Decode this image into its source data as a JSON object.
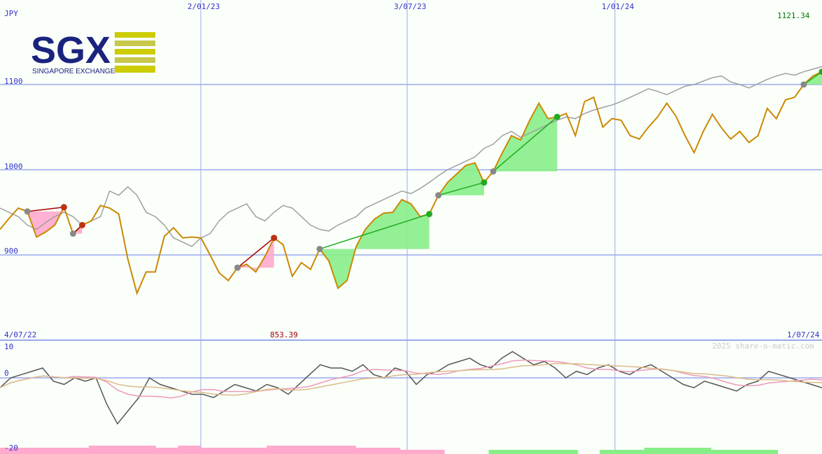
{
  "colors": {
    "background": "#fafffa",
    "grid": "#99aaee",
    "axis_text": "#3333cc",
    "price_line": "#cc8800",
    "index_line": "#a0a0a0",
    "gain_fill": "#88ee88",
    "loss_fill": "#ffaacc",
    "gain_line": "#22aa22",
    "loss_line": "#aa0000",
    "osc_line": "#555555",
    "ma_pink": "#ee99bb",
    "ma_tan": "#ddbb88",
    "last_price_text": "#007700",
    "low_price_text": "#990000",
    "watermark_text": "#cccccc"
  },
  "logo": {
    "name": "SGX",
    "tagline": "SINGAPORE EXCHANGE",
    "colors": {
      "navy": "#1a237e",
      "yellow": "#cccc00"
    }
  },
  "watermark": "2025 share-o-matic.com",
  "chart_data": {
    "type": "line",
    "currency": "JPY",
    "ylim": [
      853.39,
      1121.34
    ],
    "y_ticks": [
      "1100",
      "1000",
      "900"
    ],
    "x_ticks": [
      "2/01/23",
      "3/07/23",
      "1/01/24"
    ],
    "x_range": [
      "4/07/22",
      "1/07/24"
    ],
    "last_value": "1121.34",
    "low_value": "853.39",
    "series": [
      {
        "values": [
          930,
          943,
          955,
          951,
          921,
          927,
          935,
          956,
          925,
          935,
          940,
          958,
          955,
          948,
          895,
          855,
          880,
          880,
          922,
          932,
          920,
          921,
          920,
          900,
          879,
          870,
          885,
          889,
          880,
          898,
          920,
          912,
          875,
          891,
          883,
          907,
          893,
          861,
          870,
          910,
          930,
          942,
          949,
          950,
          965,
          960,
          945,
          948,
          970,
          985,
          995,
          1005,
          1008,
          985,
          998,
          1020,
          1040,
          1035,
          1058,
          1078,
          1060,
          1062,
          1066,
          1040,
          1080,
          1085,
          1050,
          1060,
          1058,
          1040,
          1036,
          1050,
          1062,
          1078,
          1063,
          1040,
          1020,
          1045,
          1065,
          1049,
          1036,
          1045,
          1032,
          1040,
          1072,
          1060,
          1082,
          1085,
          1100,
          1110,
          1115
        ]
      },
      {
        "values": [
          955,
          950,
          945,
          935,
          930,
          938,
          945,
          950,
          945,
          935,
          940,
          945,
          975,
          970,
          980,
          970,
          950,
          945,
          935,
          920,
          915,
          910,
          920,
          925,
          940,
          950,
          955,
          960,
          945,
          940,
          950,
          958,
          955,
          945,
          935,
          930,
          928,
          935,
          940,
          945,
          955,
          960,
          965,
          970,
          975,
          972,
          978,
          985,
          993,
          1000,
          1005,
          1010,
          1015,
          1025,
          1030,
          1040,
          1045,
          1038,
          1043,
          1048,
          1053,
          1058,
          1062,
          1060,
          1066,
          1070,
          1073,
          1076,
          1080,
          1085,
          1090,
          1095,
          1092,
          1088,
          1093,
          1098,
          1100,
          1104,
          1108,
          1110,
          1103,
          1100,
          1096,
          1101,
          1106,
          1110,
          1113,
          1111,
          1115,
          1118,
          1121
        ]
      }
    ],
    "oscillator": {
      "ylim": [
        -20,
        10
      ],
      "y_ticks": [
        "10",
        "0",
        "-20"
      ],
      "values": [
        -3,
        0,
        1,
        2,
        3,
        -1,
        -2,
        0,
        -1,
        0,
        -8,
        -14,
        -10,
        -6,
        0,
        -2,
        -3,
        -4,
        -5,
        -5,
        -6,
        -4,
        -2,
        -3,
        -4,
        -2,
        -3,
        -5,
        -2,
        1,
        4,
        3,
        3,
        2,
        4,
        1,
        0,
        3,
        2,
        -2,
        1,
        2,
        4,
        5,
        6,
        4,
        3,
        6,
        8,
        6,
        4,
        5,
        3,
        0,
        2,
        1,
        3,
        4,
        2,
        1,
        3,
        4,
        2,
        0,
        -2,
        -3,
        -1,
        -2,
        -3,
        -4,
        -2,
        -1,
        2,
        1,
        0,
        -1,
        -2,
        -3
      ]
    },
    "volume_bars": {
      "description_none": true,
      "values": [
        -2,
        -2,
        -2,
        -2,
        -3,
        -3,
        -3,
        -2,
        -3,
        -2,
        -2,
        -2,
        -3,
        -3,
        -3,
        -3,
        -2,
        -2,
        -1,
        -1,
        0,
        0,
        1,
        1,
        1,
        1,
        0,
        1,
        1,
        2,
        2,
        2,
        1,
        1,
        1,
        0,
        0
      ]
    }
  }
}
